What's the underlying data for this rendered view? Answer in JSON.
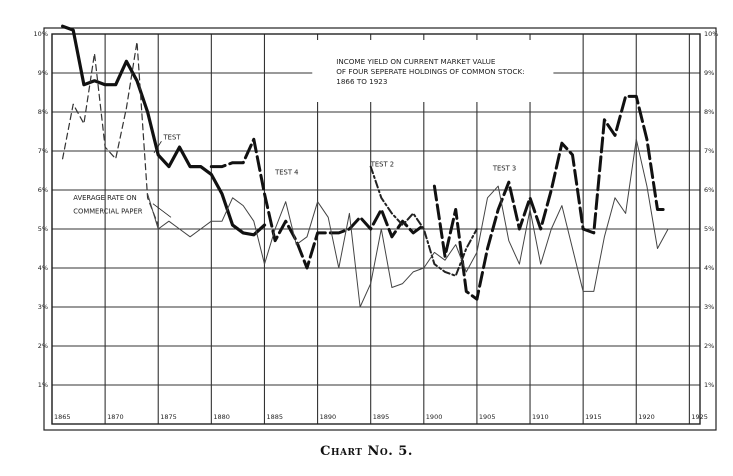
{
  "caption": "Chart No. 5.",
  "chart_data": {
    "type": "line",
    "title": "INCOME YIELD ON CURRENT MARKET VALUE OF FOUR SEPERATE HOLDINGS OF COMMON STOCK: 1866 TO 1923",
    "title_lines": [
      "INCOME YIELD ON CURRENT MARKET VALUE",
      "OF FOUR SEPERATE HOLDINGS OF COMMON STOCK:",
      "1866 TO 1923"
    ],
    "xlim": [
      1865,
      1926
    ],
    "ylim": [
      0,
      10
    ],
    "x_ticks": [
      "1865",
      "1870",
      "1875",
      "1880",
      "1885",
      "1890",
      "1895",
      "1900",
      "1905",
      "1910",
      "1915",
      "1920",
      "1925"
    ],
    "x_tick_values": [
      1865,
      1870,
      1875,
      1880,
      1885,
      1890,
      1895,
      1900,
      1905,
      1910,
      1915,
      1920,
      1925
    ],
    "y_ticks_left": [
      "1%",
      "2%",
      "3%",
      "4%",
      "5%",
      "6%",
      "7%",
      "8%",
      "9%",
      "10%"
    ],
    "y_ticks_right": [
      "1%",
      "2%",
      "3%",
      "4%",
      "5%",
      "6%",
      "7%",
      "8%",
      "9%",
      "10%"
    ],
    "y_tick_values": [
      1,
      2,
      3,
      4,
      5,
      6,
      7,
      8,
      9,
      10
    ],
    "grid": true,
    "annotations": [
      {
        "text": "TEST",
        "x": 1875.5,
        "y": 7.3
      },
      {
        "text": "TEST 4",
        "x": 1886.0,
        "y": 6.4
      },
      {
        "text": "TEST 2",
        "x": 1895.0,
        "y": 6.6
      },
      {
        "text": "TEST 3",
        "x": 1906.5,
        "y": 6.5
      },
      {
        "text": "AVERAGE RATE ON",
        "x": 1867.0,
        "y": 5.75
      },
      {
        "text": "COMMERCIAL PAPER",
        "x": 1867.0,
        "y": 5.4
      }
    ],
    "series": [
      {
        "name": "TEST",
        "style": "thick",
        "color": "#111111",
        "x": [
          1866,
          1867,
          1868,
          1869,
          1870,
          1871,
          1872,
          1873,
          1874,
          1875,
          1876,
          1877,
          1878,
          1879,
          1880,
          1881,
          1882,
          1883,
          1884,
          1885
        ],
        "y": [
          10.2,
          10.1,
          8.7,
          8.8,
          8.7,
          8.7,
          9.3,
          8.8,
          8.0,
          6.9,
          6.6,
          7.1,
          6.6,
          6.6,
          6.4,
          5.9,
          5.1,
          4.9,
          4.85,
          5.1
        ]
      },
      {
        "name": "TEST 4",
        "style": "thick-dashed",
        "color": "#111111",
        "x": [
          1880,
          1881,
          1882,
          1883,
          1884,
          1885,
          1886,
          1887,
          1888,
          1889,
          1890,
          1891,
          1892,
          1893,
          1894,
          1895,
          1896,
          1897,
          1898,
          1899,
          1900
        ],
        "y": [
          6.6,
          6.6,
          6.7,
          6.7,
          7.3,
          5.9,
          4.7,
          5.2,
          4.7,
          4.0,
          4.9,
          4.9,
          4.9,
          5.0,
          5.3,
          5.0,
          5.5,
          4.8,
          5.2,
          4.9,
          5.1
        ]
      },
      {
        "name": "TEST 2",
        "style": "medium-dashdot",
        "color": "#222222",
        "x": [
          1895,
          1896,
          1897,
          1898,
          1899,
          1900,
          1901,
          1902,
          1903,
          1904,
          1905
        ],
        "y": [
          6.6,
          5.8,
          5.4,
          5.1,
          5.4,
          5.0,
          4.1,
          3.9,
          3.8,
          4.5,
          5.0
        ]
      },
      {
        "name": "TEST 3",
        "style": "thick-dashed",
        "color": "#111111",
        "x": [
          1901,
          1902,
          1903,
          1904,
          1905,
          1906,
          1907,
          1908,
          1909,
          1910,
          1911,
          1912,
          1913,
          1914,
          1915,
          1916,
          1917,
          1918,
          1919,
          1920,
          1921,
          1922,
          1923
        ],
        "y": [
          6.1,
          4.3,
          5.5,
          3.4,
          3.2,
          4.5,
          5.5,
          6.2,
          5.0,
          5.8,
          5.0,
          6.0,
          7.2,
          6.9,
          5.0,
          4.9,
          7.8,
          7.4,
          8.4,
          8.4,
          7.3,
          5.5,
          5.5
        ]
      },
      {
        "name": "thin-dashed",
        "style": "thin-dashed",
        "color": "#333333",
        "x": [
          1866,
          1867,
          1868,
          1869,
          1870,
          1871,
          1872,
          1873,
          1874,
          1875
        ],
        "y": [
          6.8,
          8.2,
          7.7,
          9.5,
          7.1,
          6.8,
          8.1,
          9.8,
          5.8,
          5.1
        ]
      },
      {
        "name": "AVERAGE RATE ON COMMERCIAL PAPER",
        "style": "thin",
        "color": "#444444",
        "x": [
          1874,
          1875,
          1876,
          1877,
          1878,
          1879,
          1880,
          1881,
          1882,
          1883,
          1884,
          1885,
          1886,
          1887,
          1888,
          1889,
          1890,
          1891,
          1892,
          1893,
          1894,
          1895,
          1896,
          1897,
          1898,
          1899,
          1900,
          1901,
          1902,
          1903,
          1904,
          1905,
          1906,
          1907,
          1908,
          1909,
          1910,
          1911,
          1912,
          1913,
          1914,
          1915,
          1916,
          1917,
          1918,
          1919,
          1920,
          1921,
          1922,
          1923
        ],
        "y": [
          5.9,
          5.0,
          5.2,
          5.0,
          4.8,
          5.0,
          5.2,
          5.2,
          5.8,
          5.6,
          5.2,
          4.1,
          5.0,
          5.7,
          4.6,
          4.8,
          5.7,
          5.3,
          4.0,
          5.4,
          3.0,
          3.6,
          5.0,
          3.5,
          3.6,
          3.9,
          4.0,
          4.4,
          4.2,
          4.6,
          3.9,
          4.4,
          5.8,
          6.1,
          4.7,
          4.1,
          5.5,
          4.1,
          5.0,
          5.6,
          4.5,
          3.4,
          3.4,
          4.8,
          5.8,
          5.4,
          7.3,
          6.1,
          4.5,
          5.0
        ]
      }
    ]
  }
}
